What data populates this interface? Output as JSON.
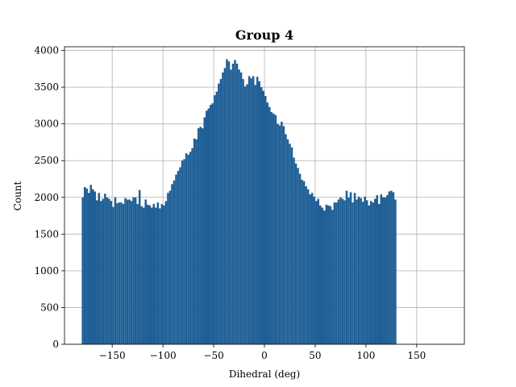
{
  "chart_data": {
    "type": "bar",
    "title": "Group 4",
    "xlabel": "Dihedral (deg)",
    "ylabel": "Count",
    "xlim": [
      -197,
      197
    ],
    "ylim": [
      0,
      4050
    ],
    "xticks": [
      -150,
      -100,
      -50,
      0,
      50,
      100,
      150
    ],
    "xtick_labels": [
      "−150",
      "−100",
      "−50",
      "0",
      "50",
      "100",
      "150"
    ],
    "yticks": [
      0,
      500,
      1000,
      1500,
      2000,
      2500,
      3000,
      3500,
      4000
    ],
    "ytick_labels": [
      "0",
      "500",
      "1000",
      "1500",
      "2000",
      "2500",
      "3000",
      "3500",
      "4000"
    ],
    "grid": true,
    "bar_color": "#1f5f96",
    "bin_start": -180,
    "bin_width": 2,
    "values": [
      2000,
      2140,
      2120,
      2060,
      2170,
      2110,
      2080,
      1960,
      2060,
      1950,
      1980,
      2050,
      2000,
      1980,
      1950,
      1870,
      2000,
      1920,
      1930,
      1930,
      1910,
      1990,
      1970,
      1970,
      1950,
      2000,
      2000,
      1910,
      2100,
      1880,
      1860,
      1970,
      1900,
      1890,
      1860,
      1910,
      1860,
      1930,
      1850,
      1910,
      1890,
      1950,
      2060,
      2090,
      2180,
      2230,
      2310,
      2360,
      2410,
      2500,
      2520,
      2600,
      2580,
      2620,
      2670,
      2800,
      2790,
      2940,
      2960,
      2940,
      3090,
      3180,
      3210,
      3260,
      3280,
      3390,
      3440,
      3550,
      3610,
      3700,
      3760,
      3880,
      3850,
      3740,
      3820,
      3870,
      3820,
      3740,
      3700,
      3610,
      3510,
      3540,
      3650,
      3620,
      3650,
      3530,
      3640,
      3580,
      3500,
      3450,
      3380,
      3290,
      3230,
      3160,
      3140,
      3120,
      3000,
      2980,
      3030,
      2970,
      2860,
      2790,
      2730,
      2680,
      2540,
      2460,
      2400,
      2320,
      2240,
      2220,
      2150,
      2110,
      2040,
      2060,
      2010,
      1950,
      1980,
      1890,
      1860,
      1820,
      1900,
      1890,
      1880,
      1830,
      1930,
      1930,
      1970,
      2000,
      1980,
      1960,
      2090,
      2000,
      2070,
      1930,
      2060,
      1970,
      2010,
      1990,
      1940,
      2010,
      1960,
      1890,
      1950,
      1930,
      1980,
      2030,
      1910,
      2040,
      2000,
      2000,
      2030,
      2080,
      2090,
      2070,
      1970
    ]
  }
}
